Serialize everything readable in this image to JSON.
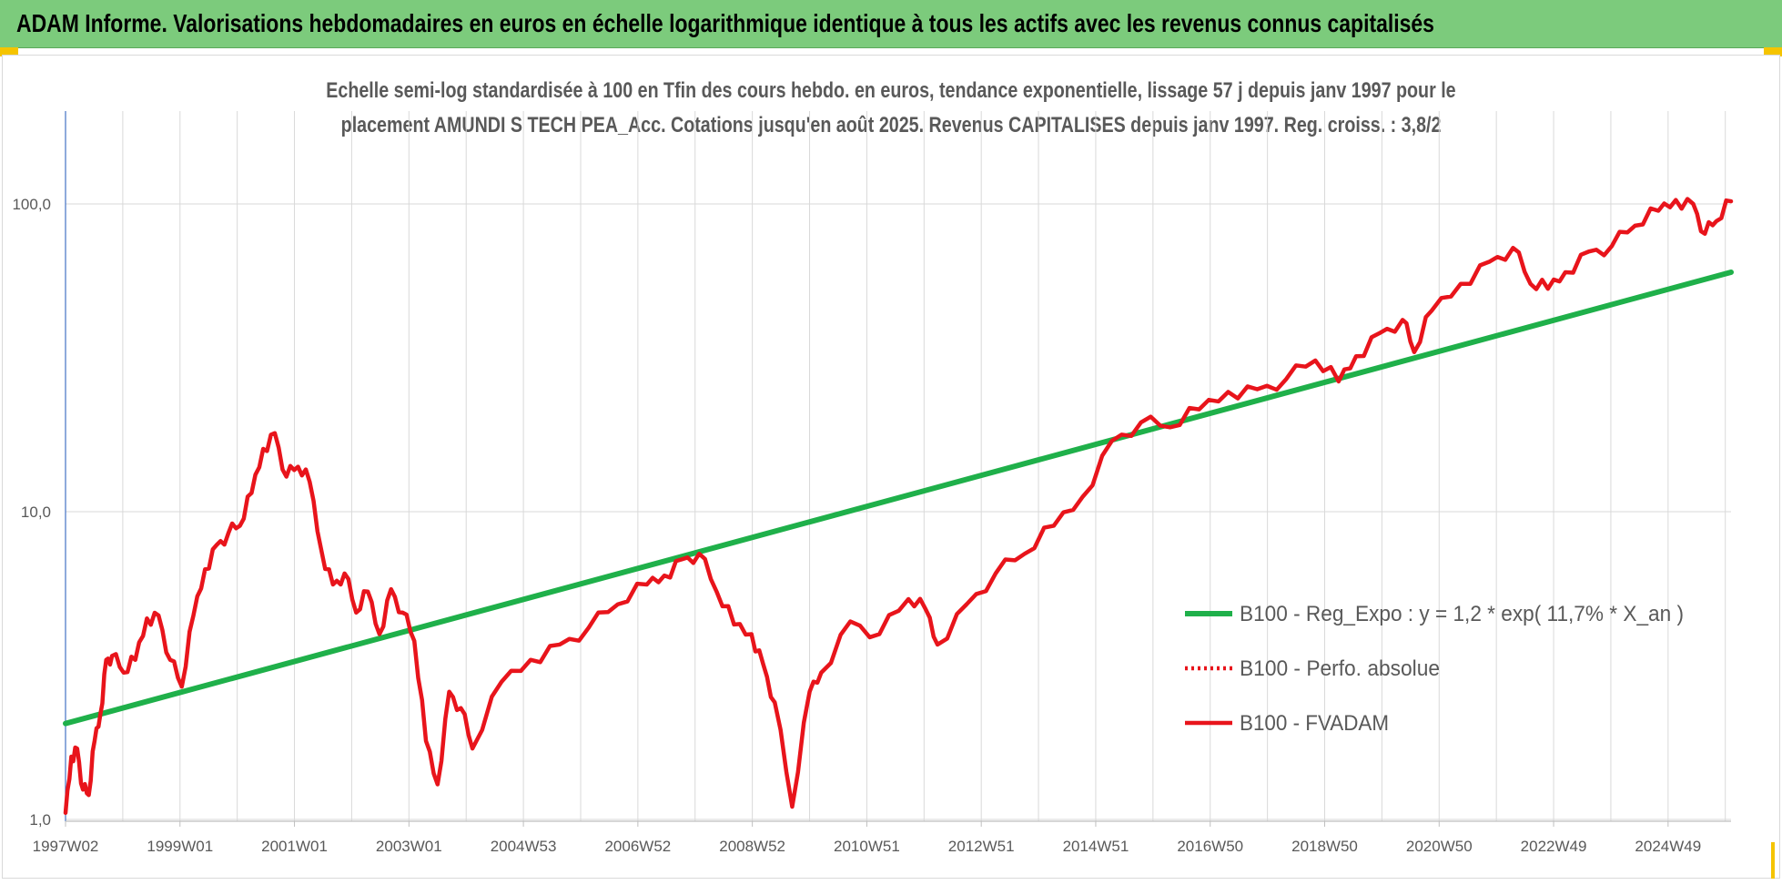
{
  "banner": {
    "title": "ADAM Informe. Valorisations hebdomadaires en euros en échelle logarithmique identique à tous les actifs avec les revenus connus capitalisés"
  },
  "colors": {
    "banner_bg": "#7ccb7c",
    "corner_accent": "#f5c400",
    "trend_line": "#1fb04a",
    "perf_line": "#e8141b",
    "fvadam_line": "#e8141b",
    "grid": "#d9d9d9",
    "axis_text": "#595959"
  },
  "chart_data": {
    "type": "line",
    "title_line1": "Echelle semi-log standardisée à 100 en Tfin des cours hebdo. en euros, tendance exponentielle, lissage 57 j depuis janv 1997 pour le",
    "title_line2": "placement AMUNDI S TECH PEA_Acc. Cotations jusqu'en août 2025. Revenus CAPITALISES depuis janv 1997. Reg. croiss. : 3,8/2",
    "y_scale": "log",
    "ylim": [
      1,
      200
    ],
    "y_ticks": [
      "1,0",
      "10,0",
      "100,0"
    ],
    "x_range": [
      1997.0,
      2025.65
    ],
    "x_ticks": [
      "1997W02",
      "1999W01",
      "2001W01",
      "2003W01",
      "2004W53",
      "2006W52",
      "2008W52",
      "2010W51",
      "2012W51",
      "2014W51",
      "2016W50",
      "2018W50",
      "2020W50",
      "2022W49",
      "2024W49"
    ],
    "grid": true,
    "legend_position": "right",
    "series": [
      {
        "name": "B100 - Reg_Expo : y = 1,2 * exp( 11,7% *  X_an )",
        "style": "solid",
        "x": [
          1997.0,
          2025.65
        ],
        "y": [
          2.05,
          60
        ]
      },
      {
        "name": "B100 - Perfo. absolue",
        "style": "dotted",
        "x": [],
        "y": []
      },
      {
        "name": "B100 - FVADAM",
        "style": "solid",
        "x": [
          1997.0,
          1997.1,
          1997.2,
          1997.3,
          1997.4,
          1997.5,
          1997.6,
          1997.7,
          1997.8,
          1998.0,
          1998.2,
          1998.4,
          1998.6,
          1998.8,
          1999.0,
          1999.2,
          1999.4,
          1999.6,
          1999.8,
          2000.0,
          2000.2,
          2000.4,
          2000.6,
          2000.8,
          2001.0,
          2001.2,
          2001.4,
          2001.6,
          2001.8,
          2002.0,
          2002.2,
          2002.4,
          2002.6,
          2002.8,
          2003.0,
          2003.2,
          2003.4,
          2003.6,
          2003.8,
          2004.0,
          2004.5,
          2005.0,
          2005.5,
          2006.0,
          2006.5,
          2007.0,
          2007.3,
          2007.6,
          2007.9,
          2008.2,
          2008.5,
          2008.8,
          2009.0,
          2009.2,
          2009.5,
          2009.8,
          2010.0,
          2010.5,
          2011.0,
          2011.5,
          2011.8,
          2012.0,
          2012.5,
          2013.0,
          2013.5,
          2014.0,
          2014.5,
          2015.0,
          2015.5,
          2016.0,
          2016.5,
          2017.0,
          2017.5,
          2018.0,
          2018.5,
          2018.9,
          2019.2,
          2019.6,
          2020.0,
          2020.2,
          2020.5,
          2021.0,
          2021.5,
          2021.9,
          2022.2,
          2022.5,
          2022.8,
          2023.2,
          2023.6,
          2024.0,
          2024.4,
          2024.7,
          2025.0,
          2025.2,
          2025.4,
          2025.65
        ],
        "y": [
          1.05,
          1.6,
          1.7,
          1.25,
          1.2,
          1.8,
          2.2,
          3.3,
          3.4,
          3.0,
          3.3,
          4.5,
          4.6,
          3.3,
          2.7,
          4.6,
          6.5,
          7.8,
          8.5,
          9.0,
          11.5,
          16,
          18,
          13,
          14,
          12.5,
          7.5,
          5.8,
          6.3,
          4.7,
          5.5,
          4.0,
          5.6,
          4.7,
          3.8,
          1.8,
          1.3,
          2.6,
          2.3,
          1.7,
          2.8,
          3.3,
          3.7,
          4.2,
          5.0,
          5.8,
          6.2,
          7.0,
          7.3,
          5.5,
          4.3,
          4.0,
          3.2,
          2.4,
          1.1,
          2.6,
          3.0,
          4.4,
          4.0,
          5.2,
          4.8,
          3.7,
          5.0,
          6.3,
          7.3,
          9.0,
          11.2,
          17,
          19.5,
          18.8,
          21.5,
          24.5,
          25,
          27,
          31,
          26.5,
          32,
          38,
          42,
          33,
          45,
          55,
          65,
          72,
          55,
          53,
          60,
          70,
          73,
          85,
          95,
          103,
          100,
          80,
          88,
          102
        ]
      }
    ]
  }
}
